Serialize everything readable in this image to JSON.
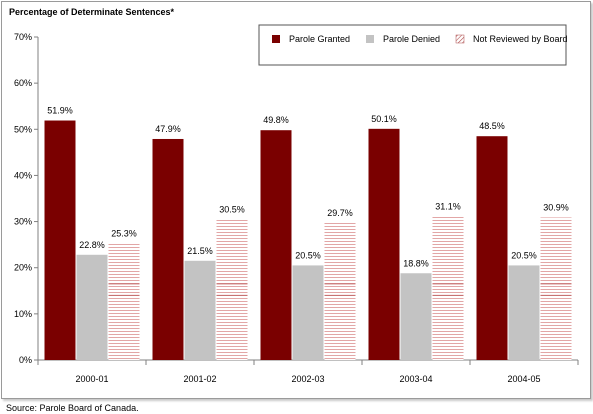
{
  "chart_data": {
    "type": "bar",
    "ylabel": "Percentage of Determinate Sentences*",
    "categories": [
      "2000-01",
      "2001-02",
      "2002-03",
      "2003-04",
      "2004-05"
    ],
    "series": [
      {
        "name": "Parole Granted",
        "values": [
          51.9,
          47.9,
          49.8,
          50.1,
          48.5
        ],
        "color": "#7a0000",
        "pattern": "solid"
      },
      {
        "name": "Parole Denied",
        "values": [
          22.8,
          21.5,
          20.5,
          18.8,
          20.5
        ],
        "color": "#c3c3c3",
        "pattern": "solid"
      },
      {
        "name": "Not Reviewed by Board",
        "values": [
          25.3,
          30.5,
          29.7,
          31.1,
          30.9
        ],
        "color": "#d98c8c",
        "pattern": "hatched"
      }
    ],
    "data_labels": [
      [
        "51.9%",
        "47.9%",
        "49.8%",
        "50.1%",
        "48.5%"
      ],
      [
        "22.8%",
        "21.5%",
        "20.5%",
        "18.8%",
        "20.5%"
      ],
      [
        "25.3%",
        "30.5%",
        "29.7%",
        "31.1%",
        "30.9%"
      ]
    ],
    "yticks": [
      "0%",
      "10%",
      "20%",
      "30%",
      "40%",
      "50%",
      "60%",
      "70%"
    ],
    "ylim": [
      0,
      70
    ],
    "legend_position": "top-right",
    "grid": false
  },
  "footer": {
    "source": "Source:  Parole Board of Canada."
  }
}
